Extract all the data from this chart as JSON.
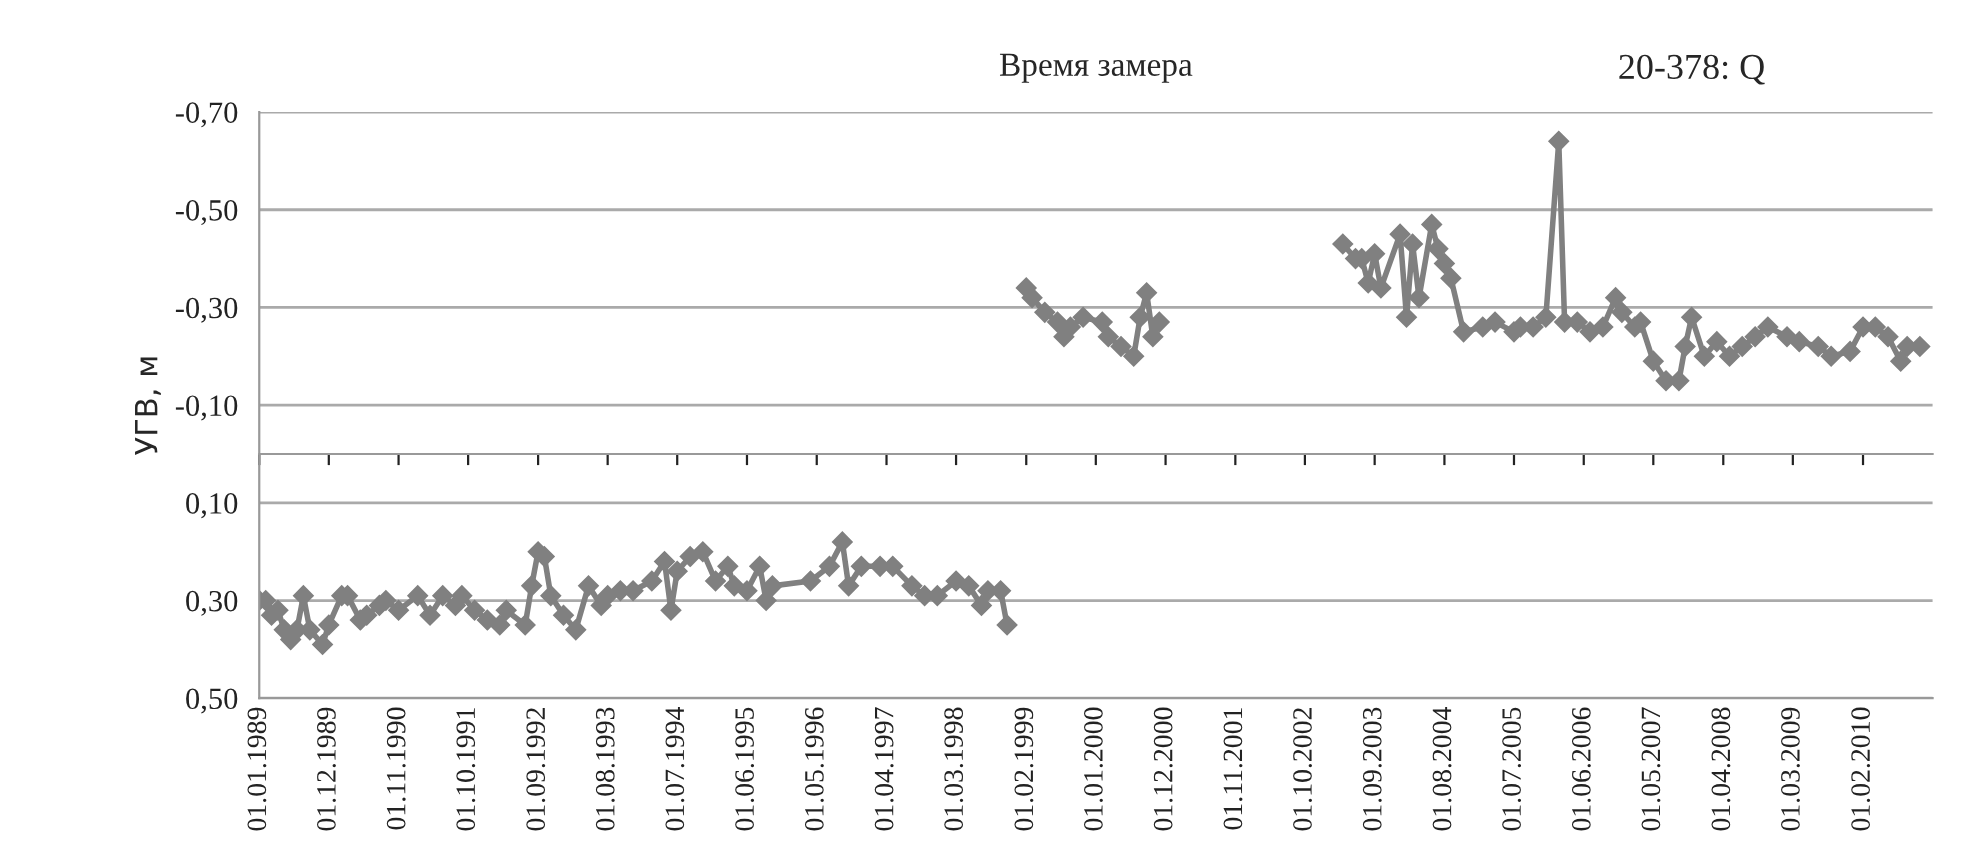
{
  "chart_data": {
    "type": "line",
    "title": "20-378: Q",
    "xlabel": "Время замера",
    "ylabel": "УГВ, м",
    "xlim": [
      "1989-01-01",
      "2011-01-01"
    ],
    "xticks": [
      {
        "value": "1989-01-01",
        "label": "01.01.1989"
      },
      {
        "value": "1989-12-01",
        "label": "01.12.1989"
      },
      {
        "value": "1990-11-01",
        "label": "01.11.1990"
      },
      {
        "value": "1991-10-01",
        "label": "01.10.1991"
      },
      {
        "value": "1992-09-01",
        "label": "01.09.1992"
      },
      {
        "value": "1993-08-01",
        "label": "01.08.1993"
      },
      {
        "value": "1994-07-01",
        "label": "01.07.1994"
      },
      {
        "value": "1995-06-01",
        "label": "01.06.1995"
      },
      {
        "value": "1996-05-01",
        "label": "01.05.1996"
      },
      {
        "value": "1997-04-01",
        "label": "01.04.1997"
      },
      {
        "value": "1998-03-01",
        "label": "01.03.1998"
      },
      {
        "value": "1999-02-01",
        "label": "01.02.1999"
      },
      {
        "value": "2000-01-01",
        "label": "01.01.2000"
      },
      {
        "value": "2000-12-01",
        "label": "01.12.2000"
      },
      {
        "value": "2001-11-01",
        "label": "01.11.2001"
      },
      {
        "value": "2002-10-01",
        "label": "01.10.2002"
      },
      {
        "value": "2003-09-01",
        "label": "01.09.2003"
      },
      {
        "value": "2004-08-01",
        "label": "01.08.2004"
      },
      {
        "value": "2005-07-01",
        "label": "01.07.2005"
      },
      {
        "value": "2006-06-01",
        "label": "01.06.2006"
      },
      {
        "value": "2007-05-01",
        "label": "01.05.2007"
      },
      {
        "value": "2008-04-01",
        "label": "01.04.2008"
      },
      {
        "value": "2009-03-01",
        "label": "01.03.2009"
      },
      {
        "value": "2010-02-01",
        "label": "01.02.2010"
      }
    ],
    "ylim": [
      0.5,
      -0.7
    ],
    "yticks": [
      {
        "value": -0.7,
        "label": "-0,70"
      },
      {
        "value": -0.5,
        "label": "-0,50"
      },
      {
        "value": -0.3,
        "label": "-0,30"
      },
      {
        "value": -0.1,
        "label": "-0,10"
      },
      {
        "value": 0.1,
        "label": "0,10"
      },
      {
        "value": 0.3,
        "label": "0,30"
      },
      {
        "value": 0.5,
        "label": "0,50"
      }
    ],
    "grid": "y",
    "marker": "diamond",
    "line_style": "solid",
    "legend": false,
    "series": [
      {
        "color": "#808080",
        "x": [
          "1989-01",
          "1989-02",
          "1989-03",
          "1989-04",
          "1989-05",
          "1989-06",
          "1989-07",
          "1989-08",
          "1989-09",
          "1989-11",
          "1989-12",
          "1990-02",
          "1990-03",
          "1990-05",
          "1990-06",
          "1990-08",
          "1990-09",
          "1990-11",
          "1991-02",
          "1991-04",
          "1991-06",
          "1991-08",
          "1991-09",
          "1991-11",
          "1992-01",
          "1992-03",
          "1992-04",
          "1992-07",
          "1992-08",
          "1992-09",
          "1992-10",
          "1992-11",
          "1993-01",
          "1993-03",
          "1993-05",
          "1993-07",
          "1993-08",
          "1993-10",
          "1993-12",
          "1994-03",
          "1994-05",
          "1994-06",
          "1994-07",
          "1994-09",
          "1994-11",
          "1995-01",
          "1995-03",
          "1995-04",
          "1995-06",
          "1995-08",
          "1995-09",
          "1995-10",
          "1996-04",
          "1996-07",
          "1996-09",
          "1996-10",
          "1996-12",
          "1997-03",
          "1997-05",
          "1997-08",
          "1997-10",
          "1997-12",
          "1998-03",
          "1998-05",
          "1998-07",
          "1998-08",
          "1998-10",
          "1998-11",
          "1999-01",
          "1999-02",
          "1999-03",
          "1999-05",
          "1999-07",
          "1999-08",
          "1999-09",
          "1999-11",
          "2000-02",
          "2000-03",
          "2000-05",
          "2000-07",
          "2000-08",
          "2000-09",
          "2000-10",
          "2000-11",
          "2002-01",
          "2003-04",
          "2003-06",
          "2003-07",
          "2003-08",
          "2003-09",
          "2003-10",
          "2004-01",
          "2004-02",
          "2004-03",
          "2004-04",
          "2004-06",
          "2004-07",
          "2004-08",
          "2004-09",
          "2004-11",
          "2005-02",
          "2005-04",
          "2005-07",
          "2005-08",
          "2005-10",
          "2005-12",
          "2006-02",
          "2006-03",
          "2006-05",
          "2006-07",
          "2006-09",
          "2006-11",
          "2006-12",
          "2007-02",
          "2007-03",
          "2007-05",
          "2007-07",
          "2007-09",
          "2007-10",
          "2007-11",
          "2008-01",
          "2008-03",
          "2008-05",
          "2008-07",
          "2008-09",
          "2008-11",
          "2009-02",
          "2009-04",
          "2009-07",
          "2009-09",
          "2009-12",
          "2010-02",
          "2010-04",
          "2010-06",
          "2010-08",
          "2010-09",
          "2010-11"
        ],
        "values": [
          0.3,
          0.3,
          0.33,
          0.32,
          0.36,
          0.38,
          0.36,
          0.29,
          0.36,
          0.39,
          0.35,
          0.29,
          0.29,
          0.34,
          0.33,
          0.31,
          0.3,
          0.32,
          0.29,
          0.33,
          0.29,
          0.31,
          0.29,
          0.32,
          0.34,
          0.35,
          0.32,
          0.35,
          0.27,
          0.2,
          0.21,
          0.29,
          0.33,
          0.36,
          0.27,
          0.31,
          0.29,
          0.28,
          0.28,
          0.26,
          0.22,
          0.32,
          0.24,
          0.21,
          0.2,
          0.26,
          0.23,
          0.27,
          0.28,
          0.23,
          0.3,
          0.27,
          0.26,
          0.23,
          0.18,
          0.27,
          0.23,
          0.23,
          0.23,
          0.27,
          0.29,
          0.29,
          0.26,
          0.27,
          0.31,
          0.28,
          0.28,
          0.35,
          null,
          -0.34,
          -0.32,
          -0.29,
          -0.27,
          -0.24,
          -0.26,
          -0.28,
          -0.27,
          -0.24,
          -0.22,
          -0.2,
          -0.28,
          -0.33,
          -0.24,
          -0.27,
          null,
          -0.43,
          -0.4,
          -0.4,
          -0.35,
          -0.41,
          -0.34,
          -0.45,
          -0.28,
          -0.43,
          -0.32,
          -0.47,
          -0.42,
          -0.39,
          -0.36,
          -0.25,
          -0.26,
          -0.27,
          -0.25,
          -0.26,
          -0.26,
          -0.28,
          -0.64,
          -0.27,
          -0.27,
          -0.25,
          -0.26,
          -0.32,
          -0.29,
          -0.26,
          -0.27,
          -0.19,
          -0.15,
          -0.15,
          -0.22,
          -0.28,
          -0.2,
          -0.23,
          -0.2,
          -0.22,
          -0.24,
          -0.26,
          -0.24,
          -0.23,
          -0.22,
          -0.2,
          -0.21,
          -0.26,
          -0.26,
          -0.24,
          -0.19,
          -0.22,
          -0.22
        ]
      }
    ]
  }
}
